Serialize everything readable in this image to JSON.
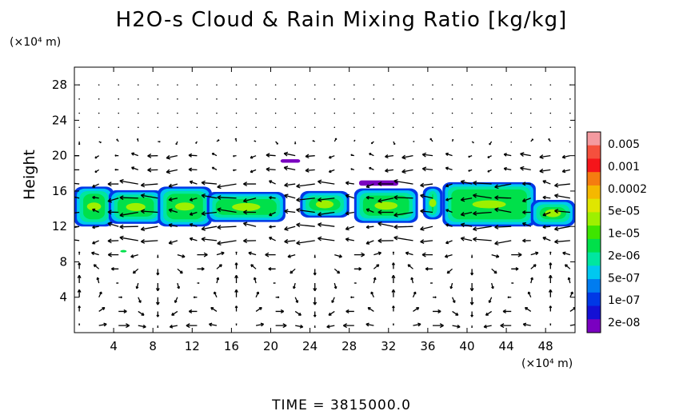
{
  "chart_data": {
    "type": "heatmap",
    "title": "H2O-s Cloud & Rain Mixing Ratio [kg/kg]",
    "ylabel": "Height",
    "x_unit": "(×10⁴ m)",
    "y_unit": "(×10⁴ m)",
    "time_label": "TIME = 3815000.0",
    "xlim": [
      0,
      51
    ],
    "ylim": [
      0,
      30
    ],
    "xticks": [
      4,
      8,
      12,
      16,
      20,
      24,
      28,
      32,
      36,
      40,
      44,
      48
    ],
    "yticks": [
      4,
      8,
      12,
      16,
      20,
      24,
      28
    ],
    "colorbar": {
      "labels": [
        "0.005",
        "0.001",
        "0.0002",
        "5e-05",
        "1e-05",
        "2e-06",
        "5e-07",
        "1e-07",
        "2e-08"
      ],
      "colors": [
        "#f49aa0",
        "#f5503d",
        "#f5151a",
        "#f57c10",
        "#f5b800",
        "#e0e600",
        "#9ef000",
        "#3ee500",
        "#00e04a",
        "#00e6a0",
        "#00c8f0",
        "#007cf0",
        "#0038e6",
        "#1410d4",
        "#7a00c0"
      ]
    },
    "cloud_layer": {
      "bottom": 12,
      "top": 16.5
    },
    "wind_vectors": "shown",
    "grid": false
  }
}
